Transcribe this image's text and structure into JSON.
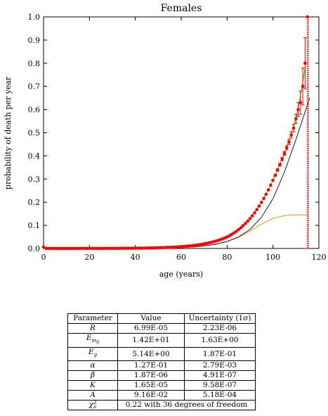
{
  "chart_data": {
    "type": "line",
    "title": "Females",
    "xlabel": "age (years)",
    "ylabel": "probability of death per year",
    "xlim": [
      0,
      120
    ],
    "ylim": [
      0,
      1.0
    ],
    "xticks": [
      0,
      20,
      40,
      60,
      80,
      100,
      120
    ],
    "xtick_labels": [
      "0",
      "20",
      "40",
      "60",
      "80",
      "100",
      "120"
    ],
    "yticks": [
      0.0,
      0.1,
      0.2,
      0.3,
      0.4,
      0.5,
      0.6,
      0.7,
      0.8,
      0.9,
      1.0
    ],
    "ytick_labels": [
      "0.0",
      "0.1",
      "0.2",
      "0.3",
      "0.4",
      "0.5",
      "0.6",
      "0.7",
      "0.8",
      "0.9",
      "1.0"
    ],
    "series": [
      {
        "kind": "points",
        "color": "#ff0000",
        "x": [
          0,
          1,
          2,
          3,
          4,
          5,
          6,
          7,
          8,
          9,
          10,
          11,
          12,
          13,
          14,
          15,
          16,
          17,
          18,
          19,
          20,
          21,
          22,
          23,
          24,
          25,
          26,
          27,
          28,
          29,
          30,
          31,
          32,
          33,
          34,
          35,
          36,
          37,
          38,
          39,
          40,
          41,
          42,
          43,
          44,
          45,
          46,
          47,
          48,
          49,
          50,
          51,
          52,
          53,
          54,
          55,
          56,
          57,
          58,
          59,
          60,
          61,
          62,
          63,
          64,
          65,
          66,
          67,
          68,
          69,
          70,
          71,
          72,
          73,
          74,
          75,
          76,
          77,
          78,
          79,
          80,
          81,
          82,
          83,
          84,
          85,
          86,
          87,
          88,
          89,
          90,
          91,
          92,
          93,
          94,
          95,
          96,
          97,
          98,
          99,
          100,
          101,
          102,
          103,
          104,
          105,
          106,
          107,
          108,
          109,
          110,
          111,
          112,
          113,
          114,
          115
        ],
        "y": [
          0.006,
          0.0005,
          0.0003,
          0.0002,
          0.0002,
          0.0002,
          0.0001,
          0.0001,
          0.0001,
          0.0001,
          0.0001,
          0.0001,
          0.0001,
          0.0002,
          0.0002,
          0.0002,
          0.0003,
          0.0003,
          0.0003,
          0.0003,
          0.0003,
          0.0003,
          0.0003,
          0.0003,
          0.0004,
          0.0004,
          0.0004,
          0.0005,
          0.0005,
          0.0005,
          0.0006,
          0.0006,
          0.0007,
          0.0007,
          0.0008,
          0.0009,
          0.0009,
          0.001,
          0.0011,
          0.0012,
          0.0013,
          0.0014,
          0.0016,
          0.0017,
          0.0019,
          0.002,
          0.0022,
          0.0024,
          0.0026,
          0.0029,
          0.0032,
          0.0035,
          0.0038,
          0.0042,
          0.0046,
          0.005,
          0.0055,
          0.006,
          0.0066,
          0.0072,
          0.0079,
          0.0086,
          0.0095,
          0.0104,
          0.0114,
          0.0125,
          0.0137,
          0.015,
          0.0165,
          0.0181,
          0.0198,
          0.0217,
          0.0238,
          0.0261,
          0.0287,
          0.0314,
          0.0345,
          0.0378,
          0.0414,
          0.0454,
          0.0498,
          0.055,
          0.0606,
          0.0668,
          0.0737,
          0.0812,
          0.0894,
          0.0983,
          0.108,
          0.118,
          0.129,
          0.141,
          0.154,
          0.168,
          0.183,
          0.199,
          0.216,
          0.234,
          0.253,
          0.273,
          0.294,
          0.316,
          0.339,
          0.362,
          0.386,
          0.41,
          0.435,
          0.46,
          0.49,
          0.52,
          0.56,
          0.6,
          0.63,
          0.7,
          0.8,
          1.0
        ],
        "error": [
          0,
          0,
          0,
          0,
          0,
          0,
          0,
          0,
          0,
          0,
          0,
          0,
          0,
          0,
          0,
          0,
          0,
          0,
          0,
          0,
          0,
          0,
          0,
          0,
          0,
          0,
          0,
          0,
          0,
          0,
          0,
          0,
          0,
          0,
          0,
          0,
          0,
          0,
          0,
          0,
          0,
          0,
          0,
          0,
          0,
          0,
          0,
          0,
          0,
          0,
          0,
          0,
          0,
          0,
          0,
          0,
          0,
          0,
          0,
          0,
          0,
          0,
          0,
          0,
          0,
          0,
          0,
          0,
          0,
          0,
          0,
          0,
          0,
          0,
          0,
          0,
          0,
          0,
          0,
          0,
          0,
          0,
          0,
          0,
          0,
          0,
          0,
          0,
          0,
          0,
          0,
          0,
          0,
          0,
          0,
          0,
          0,
          0,
          0,
          0,
          0,
          0.004,
          0.005,
          0.006,
          0.007,
          0.008,
          0.009,
          0.011,
          0.013,
          0.016,
          0.02,
          0.03,
          0.05,
          0.08,
          0.11,
          1.0
        ]
      },
      {
        "kind": "line",
        "color": "#00cc00",
        "x": [
          0,
          10,
          20,
          30,
          40,
          50,
          60,
          65,
          70,
          75,
          80,
          85,
          90,
          95,
          100,
          105,
          110,
          112,
          114
        ],
        "y": [
          0.0003,
          0.0001,
          0.0003,
          0.0006,
          0.0013,
          0.0032,
          0.0079,
          0.0125,
          0.0198,
          0.0314,
          0.0498,
          0.0812,
          0.129,
          0.199,
          0.294,
          0.41,
          0.56,
          0.66,
          0.78
        ]
      },
      {
        "kind": "line",
        "color": "#1a1a40",
        "x": [
          60,
          65,
          70,
          75,
          80,
          85,
          90,
          95,
          100,
          105,
          110,
          113,
          116
        ],
        "y": [
          0.004,
          0.0065,
          0.011,
          0.018,
          0.03,
          0.05,
          0.082,
          0.135,
          0.215,
          0.33,
          0.47,
          0.56,
          0.65
        ]
      },
      {
        "kind": "line",
        "color": "#ff8c00",
        "x": [
          0,
          20,
          40,
          50,
          60,
          65,
          70,
          75,
          80,
          85,
          90,
          95,
          100,
          105,
          110,
          115
        ],
        "y": [
          0.0001,
          0.0002,
          0.0006,
          0.0015,
          0.004,
          0.0068,
          0.011,
          0.019,
          0.03,
          0.048,
          0.075,
          0.105,
          0.13,
          0.142,
          0.145,
          0.145
        ]
      }
    ]
  },
  "parameter_table": {
    "headers": [
      "Parameter",
      "Value",
      "Uncertainty (1σ)"
    ],
    "rows": [
      {
        "param": "R",
        "value": "6.99E-05",
        "uncertainty": "2.23E-06"
      },
      {
        "param": "Em0",
        "value": "1.42E+01",
        "uncertainty": "1.63E+00"
      },
      {
        "param": "Eg",
        "value": "5.14E+00",
        "uncertainty": "1.87E-01"
      },
      {
        "param": "α",
        "value": "1.27E-01",
        "uncertainty": "2.79E-03"
      },
      {
        "param": "β",
        "value": "1.87E-06",
        "uncertainty": "4.91E-07"
      },
      {
        "param": "K",
        "value": "1.65E-05",
        "uncertainty": "9.58E-07"
      },
      {
        "param": "A",
        "value": "9.16E-02",
        "uncertainty": "5.18E-04"
      }
    ],
    "last_row": {
      "param": "χ2ν",
      "text": "0.22 with 36 degrees of freedom"
    }
  }
}
